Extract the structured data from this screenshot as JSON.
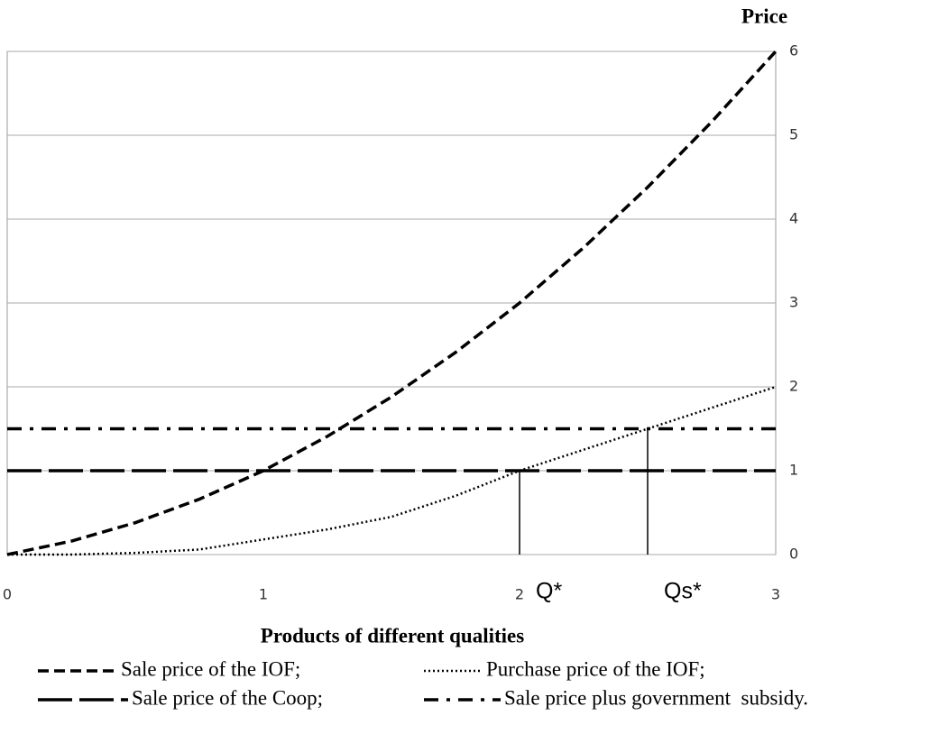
{
  "chart_data": {
    "type": "line",
    "y_label": "Price",
    "x_label": "Products of different qualities",
    "x": [
      0,
      0.25,
      0.5,
      0.75,
      1,
      1.25,
      1.5,
      1.75,
      2,
      2.25,
      2.5,
      2.75,
      3
    ],
    "xlim": [
      0,
      3
    ],
    "xticks": [
      0,
      1,
      2,
      3
    ],
    "ylim": [
      0,
      6
    ],
    "yticks": [
      0,
      1,
      2,
      3,
      4,
      5,
      6
    ],
    "grid": true,
    "series": [
      {
        "name": "Sale price of the IOF;",
        "color": "#000000",
        "style": "dashed",
        "values": [
          0,
          0.16,
          0.38,
          0.66,
          1,
          1.41,
          1.88,
          2.41,
          3,
          3.66,
          4.38,
          5.16,
          6
        ]
      },
      {
        "name": "Purchase price of the IOF;",
        "color": "#000000",
        "style": "dotted",
        "values": [
          0,
          0,
          0.02,
          0.06,
          0.18,
          0.3,
          0.45,
          0.7,
          1,
          1.25,
          1.5,
          1.75,
          2
        ]
      },
      {
        "name": "Sale price of the Coop;",
        "color": "#000000",
        "style": "longdash",
        "values": [
          1,
          1,
          1,
          1,
          1,
          1,
          1,
          1,
          1,
          1,
          1,
          1,
          1
        ]
      },
      {
        "name": "Sale price plus government  subsidy.",
        "color": "#000000",
        "style": "dashdot",
        "values": [
          1.5,
          1.5,
          1.5,
          1.5,
          1.5,
          1.5,
          1.5,
          1.5,
          1.5,
          1.5,
          1.5,
          1.5,
          1.5
        ]
      }
    ],
    "drop_lines": [
      {
        "label": "Q*",
        "x": 2,
        "y": 1
      },
      {
        "label": "Qs*",
        "x": 2.5,
        "y": 1.5
      }
    ]
  }
}
